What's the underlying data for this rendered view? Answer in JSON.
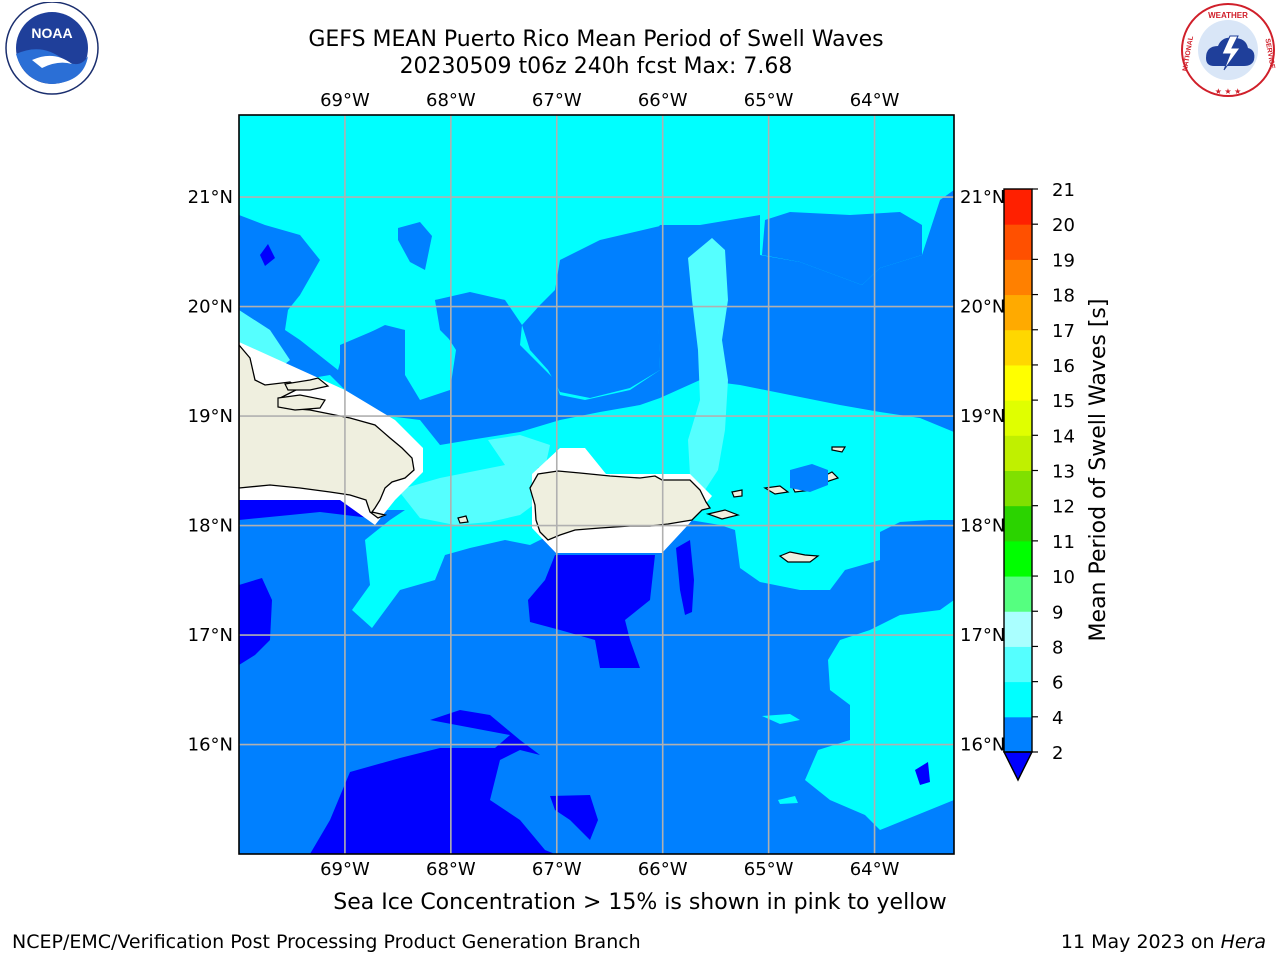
{
  "header": {
    "title_line1": "GEFS MEAN Puerto Rico Mean Period of Swell Waves",
    "title_line2": "20230509 t06z 240h fcst   Max: 7.68"
  },
  "logos": {
    "left_icon": "noaa-logo",
    "left_text": "NOAA",
    "left_ring_text": "NATIONAL OCEANIC AND ATMOSPHERIC ADMINISTRATION · U.S. DEPARTMENT OF COMMERCE",
    "right_icon": "nws-logo",
    "right_ring_text": "NATIONAL WEATHER SERVICE"
  },
  "map": {
    "lon_ticks": [
      "69°W",
      "68°W",
      "67°W",
      "66°W",
      "65°W",
      "64°W"
    ],
    "lat_ticks": [
      "21°N",
      "20°N",
      "19°N",
      "18°N",
      "17°N",
      "16°N"
    ],
    "lon_values": [
      -69,
      -68,
      -67,
      -66,
      -65,
      -64
    ],
    "lat_values": [
      21,
      20,
      19,
      18,
      17,
      16
    ],
    "extent": {
      "lon": [
        -70.0,
        -63.25
      ],
      "lat": [
        15.0,
        21.75
      ]
    },
    "grid": true,
    "colors": {
      "land": "#efefdf",
      "ocean_low": "#0000ff",
      "ocean_mid": "#0080ff",
      "ocean_high": "#00ffff",
      "ocean_top": "#55ffff"
    }
  },
  "colorbar": {
    "label": "Mean Period of Swell Waves [s]",
    "ticks": [
      "2",
      "4",
      "6",
      "8",
      "9",
      "10",
      "11",
      "12",
      "13",
      "14",
      "15",
      "16",
      "17",
      "18",
      "19",
      "20",
      "21"
    ],
    "colors": [
      "#0080ff",
      "#00ffff",
      "#55ffff",
      "#aaffff",
      "#55ff80",
      "#00ff00",
      "#2bd300",
      "#80e000",
      "#c0f000",
      "#e0ff00",
      "#ffff00",
      "#ffd700",
      "#ffaa00",
      "#ff8000",
      "#ff5000",
      "#ff2000"
    ],
    "extend_color": "#0000ff"
  },
  "notes": {
    "sea_ice": "Sea Ice Concentration > 15% is shown in pink to yellow"
  },
  "footer": {
    "left": "NCEP/EMC/Verification Post Processing Product Generation Branch",
    "right_date": "11 May 2023 on ",
    "right_host": "Hera"
  }
}
